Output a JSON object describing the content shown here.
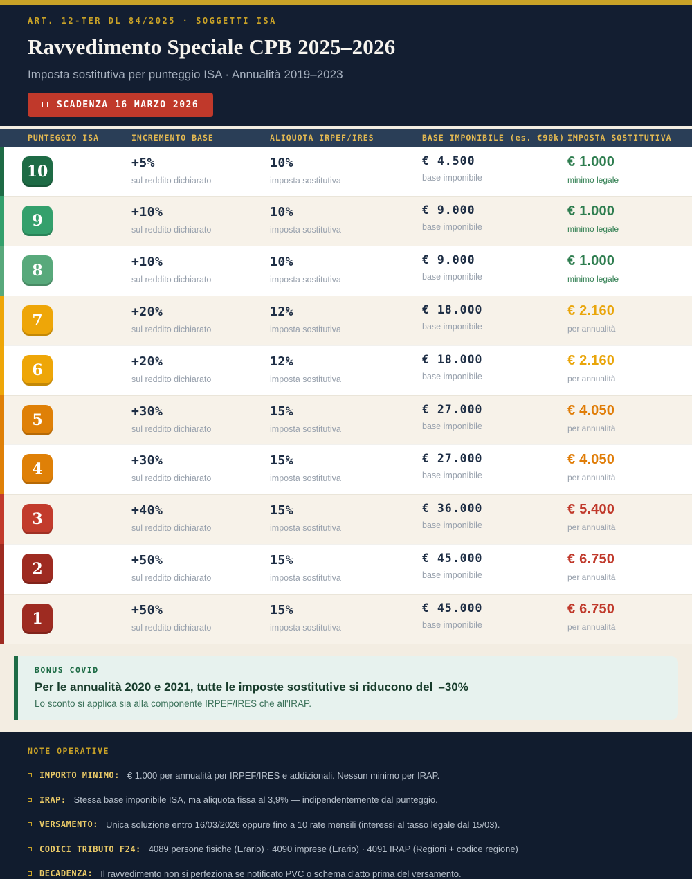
{
  "header": {
    "eyebrow": "ART. 12-TER DL 84/2025  ·  SOGGETTI ISA",
    "title": "Ravvedimento Speciale CPB 2025–2026",
    "subtitle": "Imposta sostitutiva per punteggio ISA  ·  Annualità 2019–2023",
    "deadline_badge": "SCADENZA 16 MARZO 2026"
  },
  "table": {
    "columns": [
      "PUNTEGGIO ISA",
      "INCREMENTO BASE",
      "ALIQUOTA IRPEF/IRES",
      "BASE IMPONIBILE (es. €90k)",
      "IMPOSTA SOSTITUTIVA"
    ],
    "increment_note": "sul reddito dichiarato",
    "rate_note": "imposta sostitutiva",
    "base_note": "base imponibile",
    "rows": [
      {
        "score": "10",
        "badge_color": "#1e6b45",
        "increment": "+5%",
        "rate": "10%",
        "base": "€ 4.500",
        "tax": "€ 1.000",
        "tax_note": "minimo legale",
        "tax_color": "#2e7d4f",
        "tax_note_color": "#2e7d4f"
      },
      {
        "score": "9",
        "badge_color": "#34a06c",
        "increment": "+10%",
        "rate": "10%",
        "base": "€ 9.000",
        "tax": "€ 1.000",
        "tax_note": "minimo legale",
        "tax_color": "#2e7d4f",
        "tax_note_color": "#2e7d4f"
      },
      {
        "score": "8",
        "badge_color": "#58a97b",
        "increment": "+10%",
        "rate": "10%",
        "base": "€ 9.000",
        "tax": "€ 1.000",
        "tax_note": "minimo legale",
        "tax_color": "#2e7d4f",
        "tax_note_color": "#2e7d4f"
      },
      {
        "score": "7",
        "badge_color": "#eea608",
        "increment": "+20%",
        "rate": "12%",
        "base": "€ 18.000",
        "tax": "€ 2.160",
        "tax_note": "per annualità",
        "tax_color": "#e9a50a",
        "tax_note_color": "#98a1ad"
      },
      {
        "score": "6",
        "badge_color": "#eea608",
        "increment": "+20%",
        "rate": "12%",
        "base": "€ 18.000",
        "tax": "€ 2.160",
        "tax_note": "per annualità",
        "tax_color": "#e9a50a",
        "tax_note_color": "#98a1ad"
      },
      {
        "score": "5",
        "badge_color": "#df8007",
        "increment": "+30%",
        "rate": "15%",
        "base": "€ 27.000",
        "tax": "€ 4.050",
        "tax_note": "per annualità",
        "tax_color": "#e07d08",
        "tax_note_color": "#98a1ad"
      },
      {
        "score": "4",
        "badge_color": "#df8007",
        "increment": "+30%",
        "rate": "15%",
        "base": "€ 27.000",
        "tax": "€ 4.050",
        "tax_note": "per annualità",
        "tax_color": "#e07d08",
        "tax_note_color": "#98a1ad"
      },
      {
        "score": "3",
        "badge_color": "#c23b2c",
        "increment": "+40%",
        "rate": "15%",
        "base": "€ 36.000",
        "tax": "€ 5.400",
        "tax_note": "per annualità",
        "tax_color": "#c0392b",
        "tax_note_color": "#98a1ad"
      },
      {
        "score": "2",
        "badge_color": "#9e2b21",
        "increment": "+50%",
        "rate": "15%",
        "base": "€ 45.000",
        "tax": "€ 6.750",
        "tax_note": "per annualità",
        "tax_color": "#c0392b",
        "tax_note_color": "#98a1ad"
      },
      {
        "score": "1",
        "badge_color": "#9e2b21",
        "increment": "+50%",
        "rate": "15%",
        "base": "€ 45.000",
        "tax": "€ 6.750",
        "tax_note": "per annualità",
        "tax_color": "#c0392b",
        "tax_note_color": "#98a1ad"
      }
    ]
  },
  "callout": {
    "label": "BONUS COVID",
    "title": "Per le annualità 2020 e 2021, tutte le imposte sostitutive si riducono del",
    "highlight": "–30%",
    "text": "Lo sconto si applica sia alla componente IRPEF/IRES che all'IRAP."
  },
  "notes": {
    "heading": "NOTE OPERATIVE",
    "items": [
      {
        "label": "IMPORTO MINIMO:",
        "text": "€ 1.000 per annualità per IRPEF/IRES e addizionali. Nessun minimo per IRAP."
      },
      {
        "label": "IRAP:",
        "text": "Stessa base imponibile ISA, ma aliquota fissa al 3,9% — indipendentemente dal punteggio."
      },
      {
        "label": "VERSAMENTO:",
        "text": "Unica soluzione entro 16/03/2026 oppure fino a 10 rate mensili (interessi al tasso legale dal 15/03)."
      },
      {
        "label": "CODICI TRIBUTO F24:",
        "text": "4089 persone fisiche (Erario)  ·  4090 imprese (Erario)  ·  4091 IRAP (Regioni + codice regione)"
      },
      {
        "label": "DECADENZA:",
        "text": "Il ravvedimento non si perfeziona se notificato PVC o schema d'atto prima del versamento."
      }
    ]
  },
  "colors": {
    "gold": "#c9a227",
    "header-navy": "#131e31",
    "footer-navy": "#111c2e",
    "page-beige": "#f3ede2",
    "row-alt": "#f7f2e9",
    "ink": "#1d2d44",
    "subtext": "#98a1ad",
    "deadline-red": "#c0392b",
    "mint": "#e7f2ee",
    "callout-green": "#1e6b45",
    "callout-title": "#173c2b",
    "callout-text": "#3a7159",
    "col-head": "#e3b952",
    "note-label": "#e9c967",
    "note-text": "#b7c0cb"
  }
}
